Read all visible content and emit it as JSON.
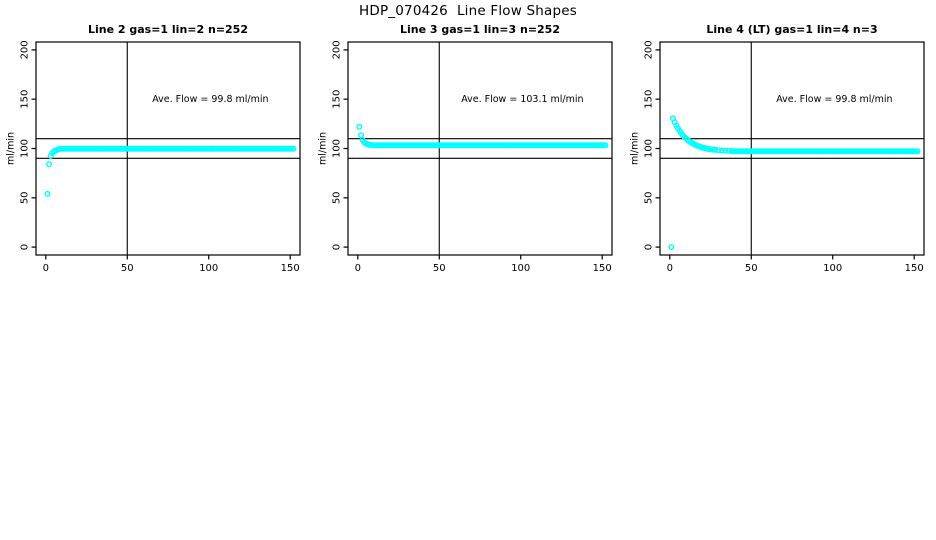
{
  "figure_title": "HDP_070426  Line Flow Shapes",
  "colors": {
    "points": "#00ffff",
    "lines": "#000000",
    "background": "#ffffff"
  },
  "chart_data": [
    {
      "type": "scatter",
      "title": "Line 2 gas=1 lin=2 n=252",
      "annotation": "Ave. Flow =  99.8  ml/min",
      "ave_flow": 99.8,
      "n": 252,
      "xlabel": "",
      "ylabel": "ml/min",
      "xlim": [
        0,
        150
      ],
      "ylim": [
        0,
        200
      ],
      "xticks": [
        0,
        50,
        100,
        150
      ],
      "yticks": [
        0,
        50,
        100,
        150,
        200
      ],
      "vlines": [
        50
      ],
      "hlines": [
        90,
        110
      ],
      "grid": false,
      "annotation_xy": [
        101,
        150
      ],
      "points": [
        [
          1,
          54
        ],
        [
          2,
          84
        ],
        [
          3,
          92.5
        ],
        [
          4,
          95.5
        ],
        [
          5,
          97
        ],
        [
          6,
          98
        ],
        [
          7,
          98.7
        ],
        [
          8,
          99.2
        ]
      ],
      "runs": [
        {
          "from": 9,
          "to": 152,
          "value": 99.8
        }
      ]
    },
    {
      "type": "scatter",
      "title": "Line 3 gas=1 lin=3 n=252",
      "annotation": "Ave. Flow =  103.1  ml/min",
      "ave_flow": 103.1,
      "n": 252,
      "xlabel": "",
      "ylabel": "ml/min",
      "xlim": [
        0,
        150
      ],
      "ylim": [
        0,
        200
      ],
      "xticks": [
        0,
        50,
        100,
        150
      ],
      "yticks": [
        0,
        50,
        100,
        150,
        200
      ],
      "vlines": [
        50
      ],
      "hlines": [
        90,
        110
      ],
      "grid": false,
      "annotation_xy": [
        101,
        150
      ],
      "points": [
        [
          1,
          122
        ],
        [
          2,
          113.5
        ],
        [
          3,
          108.5
        ],
        [
          4,
          106.2
        ],
        [
          5,
          105
        ],
        [
          6,
          104.3
        ],
        [
          7,
          103.8
        ],
        [
          8,
          103.5
        ]
      ],
      "runs": [
        {
          "from": 9,
          "to": 152,
          "value": 103.3
        }
      ]
    },
    {
      "type": "scatter",
      "title": "Line 4 (LT) gas=1 lin=4 n=3",
      "annotation": "Ave. Flow =  99.8  ml/min",
      "ave_flow": 99.8,
      "n": 3,
      "xlabel": "",
      "ylabel": "ml/min",
      "xlim": [
        0,
        150
      ],
      "ylim": [
        0,
        200
      ],
      "xticks": [
        0,
        50,
        100,
        150
      ],
      "yticks": [
        0,
        50,
        100,
        150,
        200
      ],
      "vlines": [
        50
      ],
      "hlines": [
        90,
        110
      ],
      "grid": false,
      "annotation_xy": [
        101,
        150
      ],
      "points": [
        [
          1,
          0
        ],
        [
          2,
          130.5
        ],
        [
          3,
          126.8
        ],
        [
          4,
          123.5
        ],
        [
          5,
          120.5
        ],
        [
          6,
          117.9
        ],
        [
          7,
          115.6
        ],
        [
          8,
          113.5
        ],
        [
          9,
          111.7
        ],
        [
          10,
          110.1
        ],
        [
          11,
          108.6
        ],
        [
          12,
          107.3
        ],
        [
          13,
          106.2
        ],
        [
          14,
          105.2
        ],
        [
          15,
          104.3
        ],
        [
          16,
          103.5
        ],
        [
          17,
          102.7
        ],
        [
          18,
          102.1
        ],
        [
          19,
          101.5
        ],
        [
          20,
          101
        ],
        [
          21,
          100.6
        ],
        [
          22,
          100.2
        ],
        [
          23,
          99.8
        ],
        [
          24,
          99.5
        ],
        [
          25,
          99.2
        ],
        [
          26,
          99
        ],
        [
          27,
          98.8
        ],
        [
          28,
          98.6
        ],
        [
          30,
          98.2
        ],
        [
          32,
          98
        ],
        [
          34,
          97.8
        ],
        [
          36,
          97.6
        ],
        [
          38,
          97.5
        ]
      ],
      "runs": [
        {
          "from": 39,
          "to": 152,
          "value": 97.2
        }
      ]
    }
  ]
}
